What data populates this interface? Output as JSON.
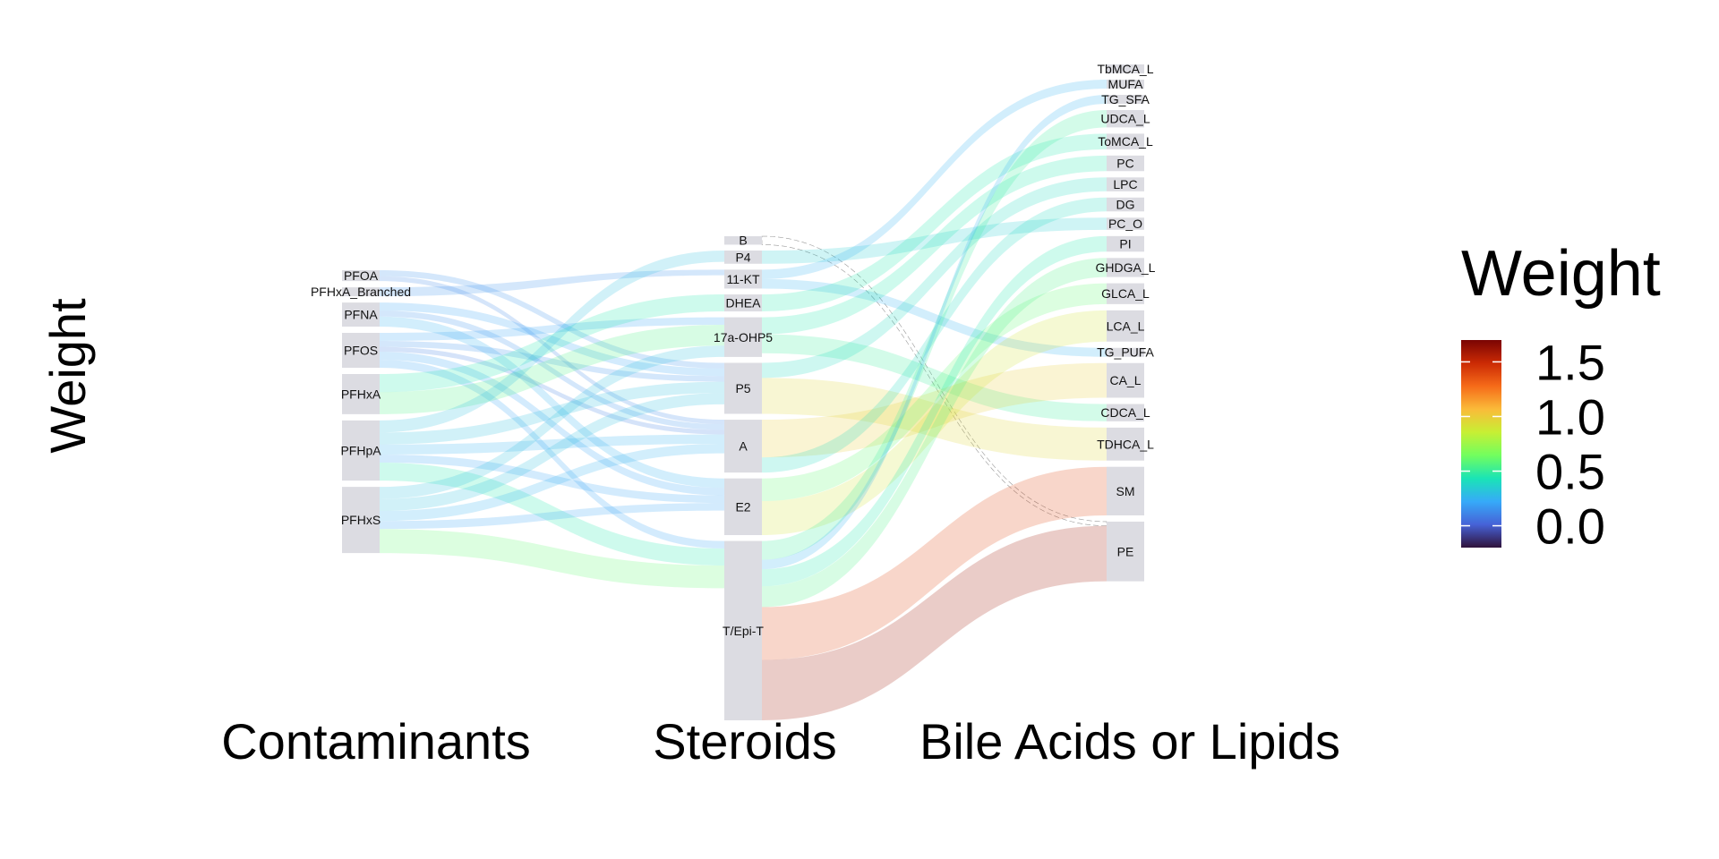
{
  "chart_data": {
    "type": "sankey",
    "ylabel": "Weight",
    "axes": [
      "Contaminants",
      "Steroids",
      "Bile Acids or Lipids"
    ],
    "legend": {
      "title": "Weight",
      "ticks": [
        1.5,
        1.0,
        0.5,
        0.0
      ],
      "tick_labels": [
        "1.5",
        "1.0",
        "0.5",
        "0.0"
      ],
      "range": [
        -0.2,
        1.7
      ],
      "colors": [
        "#30123b",
        "#4662d7",
        "#36aaf9",
        "#1ae4b6",
        "#72fe5e",
        "#c7ef34",
        "#fabb39",
        "#f66b19",
        "#cb2a04",
        "#7a0403"
      ]
    },
    "nodes": {
      "contaminants": [
        "PFOA",
        "PFHxA_Branched",
        "PFNA",
        "PFOS",
        "PFHxA",
        "PFHpA",
        "PFHxS"
      ],
      "steroids": [
        "B",
        "P4",
        "11-KT",
        "DHEA",
        "17a-OHP5",
        "P5",
        "A",
        "E2",
        "T/Epi-T"
      ],
      "bile_acids_lipids": [
        "TbMCA_L",
        "MUFA",
        "TG_SFA",
        "UDCA_L",
        "ToMCA_L",
        "PC",
        "LPC",
        "DG",
        "PC_O",
        "PI",
        "GHDGA_L",
        "GLCA_L",
        "LCA_L",
        "TG_PUFA",
        "CA_L",
        "CDCA_L",
        "TDHCA_L",
        "SM",
        "PE"
      ]
    },
    "links": [
      {
        "source": "PFOA",
        "target": "P5",
        "weight": 0.15
      },
      {
        "source": "PFOA",
        "target": "A",
        "weight": 0.12
      },
      {
        "source": "PFHxA_Branched",
        "target": "11-KT",
        "weight": 0.15
      },
      {
        "source": "PFNA",
        "target": "P5",
        "weight": 0.2
      },
      {
        "source": "PFNA",
        "target": "A",
        "weight": 0.15
      },
      {
        "source": "PFNA",
        "target": "E2",
        "weight": 0.25
      },
      {
        "source": "PFOS",
        "target": "17a-OHP5",
        "weight": 0.2
      },
      {
        "source": "PFOS",
        "target": "P5",
        "weight": 0.15
      },
      {
        "source": "PFOS",
        "target": "A",
        "weight": 0.1
      },
      {
        "source": "PFOS",
        "target": "E2",
        "weight": 0.2
      },
      {
        "source": "PFOS",
        "target": "T/Epi-T",
        "weight": 0.2
      },
      {
        "source": "PFHxA",
        "target": "DHEA",
        "weight": 0.45
      },
      {
        "source": "PFHxA",
        "target": "17a-OHP5",
        "weight": 0.55
      },
      {
        "source": "PFHpA",
        "target": "P4",
        "weight": 0.3
      },
      {
        "source": "PFHpA",
        "target": "P5",
        "weight": 0.3
      },
      {
        "source": "PFHpA",
        "target": "A",
        "weight": 0.25
      },
      {
        "source": "PFHpA",
        "target": "E2",
        "weight": 0.2
      },
      {
        "source": "PFHpA",
        "target": "T/Epi-T",
        "weight": 0.45
      },
      {
        "source": "PFHxS",
        "target": "17a-OHP5",
        "weight": 0.3
      },
      {
        "source": "PFHxS",
        "target": "P5",
        "weight": 0.3
      },
      {
        "source": "PFHxS",
        "target": "A",
        "weight": 0.25
      },
      {
        "source": "PFHxS",
        "target": "E2",
        "weight": 0.2
      },
      {
        "source": "PFHxS",
        "target": "T/Epi-T",
        "weight": 0.6
      },
      {
        "source": "B",
        "target": "PE",
        "weight": 0.0
      },
      {
        "source": "P4",
        "target": "PC_O",
        "weight": 0.35
      },
      {
        "source": "11-KT",
        "target": "MUFA",
        "weight": 0.25
      },
      {
        "source": "11-KT",
        "target": "TG_PUFA",
        "weight": 0.25
      },
      {
        "source": "DHEA",
        "target": "ToMCA_L",
        "weight": 0.45
      },
      {
        "source": "17a-OHP5",
        "target": "PC",
        "weight": 0.45
      },
      {
        "source": "17a-OHP5",
        "target": "CDCA_L",
        "weight": 0.5
      },
      {
        "source": "P5",
        "target": "LPC",
        "weight": 0.4
      },
      {
        "source": "P5",
        "target": "TDHCA_L",
        "weight": 0.95
      },
      {
        "source": "A",
        "target": "CA_L",
        "weight": 1.0
      },
      {
        "source": "A",
        "target": "DG",
        "weight": 0.4
      },
      {
        "source": "E2",
        "target": "GLCA_L",
        "weight": 0.6
      },
      {
        "source": "E2",
        "target": "LCA_L",
        "weight": 0.9
      },
      {
        "source": "T/Epi-T",
        "target": "UDCA_L",
        "weight": 0.5
      },
      {
        "source": "T/Epi-T",
        "target": "TG_SFA",
        "weight": 0.25
      },
      {
        "source": "T/Epi-T",
        "target": "PI",
        "weight": 0.45
      },
      {
        "source": "T/Epi-T",
        "target": "GHDGA_L",
        "weight": 0.55
      },
      {
        "source": "T/Epi-T",
        "target": "SM",
        "weight": 1.4
      },
      {
        "source": "T/Epi-T",
        "target": "PE",
        "weight": 1.6
      }
    ]
  }
}
